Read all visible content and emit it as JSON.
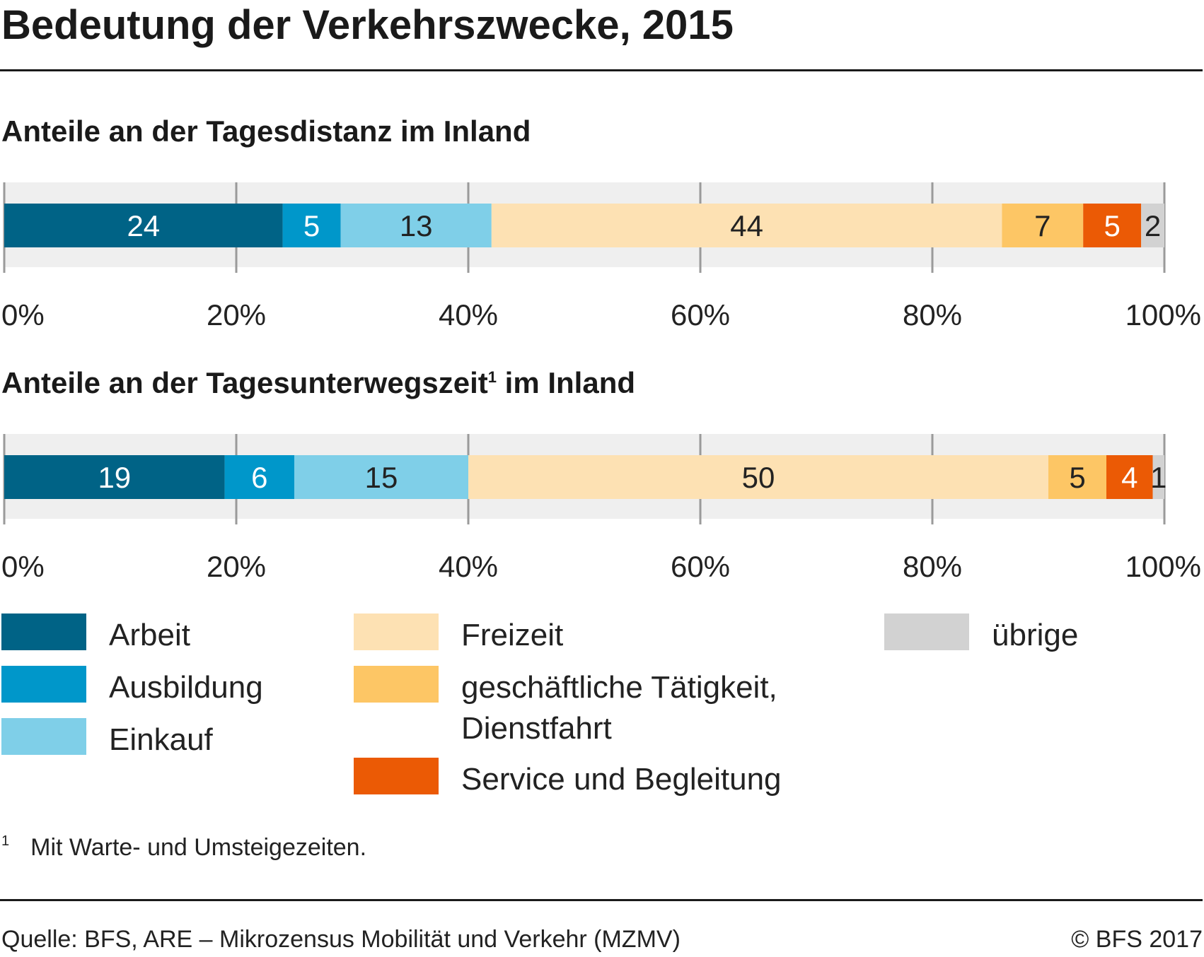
{
  "title": "Bedeutung der Verkehrszwecke, 2015",
  "chart_data": [
    {
      "type": "bar",
      "orientation": "horizontal-stacked",
      "title": "Anteile an der Tagesdistanz im Inland",
      "title_sup": "",
      "title_suffix": "",
      "xlim": [
        0,
        100
      ],
      "xticks": [
        "0%",
        "20%",
        "40%",
        "60%",
        "80%",
        "100%"
      ],
      "grid": true,
      "series": [
        {
          "name": "Arbeit",
          "value": 24,
          "color": "#006386"
        },
        {
          "name": "Ausbildung",
          "value": 5,
          "color": "#0097ca"
        },
        {
          "name": "Einkauf",
          "value": 13,
          "color": "#7fcfe8"
        },
        {
          "name": "Freizeit",
          "value": 44,
          "color": "#fde1b3"
        },
        {
          "name": "geschäftliche Tätigkeit, Dienstfahrt",
          "value": 7,
          "color": "#fdc665"
        },
        {
          "name": "Service und Begleitung",
          "value": 5,
          "color": "#eb5a05"
        },
        {
          "name": "übrige",
          "value": 2,
          "color": "#d2d2d2"
        }
      ]
    },
    {
      "type": "bar",
      "orientation": "horizontal-stacked",
      "title": "Anteile an der Tagesunterwegszeit",
      "title_sup": "1",
      "title_suffix": " im Inland",
      "xlim": [
        0,
        100
      ],
      "xticks": [
        "0%",
        "20%",
        "40%",
        "60%",
        "80%",
        "100%"
      ],
      "grid": true,
      "series": [
        {
          "name": "Arbeit",
          "value": 19,
          "color": "#006386"
        },
        {
          "name": "Ausbildung",
          "value": 6,
          "color": "#0097ca"
        },
        {
          "name": "Einkauf",
          "value": 15,
          "color": "#7fcfe8"
        },
        {
          "name": "Freizeit",
          "value": 50,
          "color": "#fde1b3"
        },
        {
          "name": "geschäftliche Tätigkeit, Dienstfahrt",
          "value": 5,
          "color": "#fdc665"
        },
        {
          "name": "Service und Begleitung",
          "value": 4,
          "color": "#eb5a05"
        },
        {
          "name": "übrige",
          "value": 1,
          "color": "#d2d2d2"
        }
      ]
    }
  ],
  "legend": [
    {
      "label": "Arbeit",
      "color": "#006386"
    },
    {
      "label": "Ausbildung",
      "color": "#0097ca"
    },
    {
      "label": "Einkauf",
      "color": "#7fcfe8"
    },
    {
      "label": "Freizeit",
      "color": "#fde1b3"
    },
    {
      "label": "geschäftliche Tätigkeit, Dienstfahrt",
      "color": "#fdc665"
    },
    {
      "label": "Service und Begleitung",
      "color": "#eb5a05"
    },
    {
      "label": "übrige",
      "color": "#d2d2d2"
    }
  ],
  "footnote": {
    "mark": "1",
    "text": "Mit Warte- und Umsteigezeiten."
  },
  "source": "Quelle: BFS, ARE – Mikrozensus Mobilität und Verkehr (MZMV)",
  "copyright": "© BFS 2017"
}
